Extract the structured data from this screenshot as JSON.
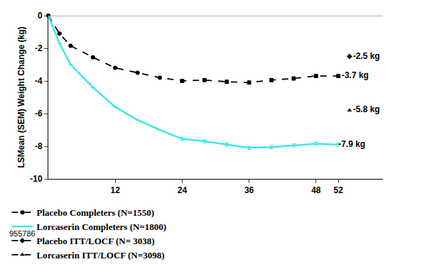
{
  "chart_data": {
    "type": "line",
    "y_label": "LSMean (SEM) Weight Change (kg)",
    "xlim": [
      0,
      60
    ],
    "xticks": [
      12,
      24,
      36,
      48,
      52
    ],
    "ylim": [
      -10,
      0
    ],
    "yticks": [
      0,
      -2,
      -4,
      -6,
      -8,
      -10
    ],
    "grid": false,
    "legend": "bottom",
    "footnote": "955786",
    "series": [
      {
        "name": "Placebo Completers (N=1550)",
        "color": "#000000",
        "marker": "circle",
        "line_style": "dashed",
        "x": [
          0,
          2,
          4,
          8,
          12,
          16,
          20,
          24,
          28,
          32,
          36,
          40,
          44,
          48,
          52
        ],
        "values": [
          0,
          -1.1,
          -1.85,
          -2.55,
          -3.2,
          -3.5,
          -3.8,
          -4.0,
          -3.95,
          -4.05,
          -4.1,
          -3.95,
          -3.85,
          -3.7,
          -3.7
        ],
        "error": [
          0,
          0,
          0,
          0,
          0,
          0,
          0,
          0.1,
          0.1,
          0.1,
          0.1,
          0.1,
          0.1,
          0.1,
          0.1
        ],
        "value_labels": [
          null,
          null,
          null,
          null,
          null,
          null,
          null,
          null,
          null,
          null,
          null,
          null,
          null,
          null,
          "-3.7 kg"
        ]
      },
      {
        "name": "Lorcaserin Completers (N=1800)",
        "color": "#3de6ec",
        "marker": "none",
        "line_style": "solid",
        "x": [
          0,
          2,
          4,
          8,
          12,
          16,
          20,
          24,
          28,
          32,
          36,
          40,
          44,
          48,
          52
        ],
        "values": [
          0,
          -1.7,
          -3.0,
          -4.4,
          -5.6,
          -6.4,
          -7.0,
          -7.55,
          -7.7,
          -7.9,
          -8.1,
          -8.05,
          -7.95,
          -7.85,
          -7.9
        ],
        "error": [
          0,
          0,
          0,
          0,
          0,
          0,
          0,
          0.1,
          0.1,
          0.1,
          0.1,
          0.1,
          0.1,
          0.1,
          0.1
        ],
        "value_labels": [
          null,
          null,
          null,
          null,
          null,
          null,
          null,
          null,
          null,
          null,
          null,
          null,
          null,
          null,
          "-7.9 kg"
        ]
      },
      {
        "name": "Placebo ITT/LOCF (N= 3038)",
        "color": "#000000",
        "marker": "diamond",
        "line_style": "dashed",
        "x": [
          54
        ],
        "values": [
          -2.5
        ],
        "value_labels": [
          "-2.5 kg"
        ]
      },
      {
        "name": "Lorcaserin ITT/LOCF (N=3098)",
        "color": "#000000",
        "marker": "triangle-up",
        "line_style": "dashed",
        "x": [
          54
        ],
        "values": [
          -5.8
        ],
        "value_labels": [
          "-5.8 kg"
        ]
      }
    ]
  }
}
